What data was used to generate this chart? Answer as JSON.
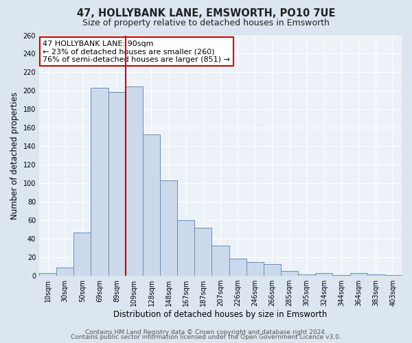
{
  "title": "47, HOLLYBANK LANE, EMSWORTH, PO10 7UE",
  "subtitle": "Size of property relative to detached houses in Emsworth",
  "xlabel": "Distribution of detached houses by size in Emsworth",
  "ylabel": "Number of detached properties",
  "bar_labels": [
    "10sqm",
    "30sqm",
    "50sqm",
    "69sqm",
    "89sqm",
    "109sqm",
    "128sqm",
    "148sqm",
    "167sqm",
    "187sqm",
    "207sqm",
    "226sqm",
    "246sqm",
    "266sqm",
    "285sqm",
    "305sqm",
    "324sqm",
    "344sqm",
    "364sqm",
    "383sqm",
    "403sqm"
  ],
  "bar_values": [
    3,
    9,
    47,
    203,
    199,
    205,
    153,
    103,
    60,
    52,
    33,
    19,
    15,
    13,
    5,
    2,
    3,
    1,
    3,
    2,
    1
  ],
  "bar_color": "#ccd9ea",
  "bar_edge_color": "#6090bf",
  "property_line_color": "#cc0000",
  "annotation_line1": "47 HOLLYBANK LANE: 90sqm",
  "annotation_line2": "← 23% of detached houses are smaller (260)",
  "annotation_line3": "76% of semi-detached houses are larger (851) →",
  "annotation_box_color": "#ffffff",
  "annotation_box_edge_color": "#cc0000",
  "ylim": [
    0,
    260
  ],
  "yticks": [
    0,
    20,
    40,
    60,
    80,
    100,
    120,
    140,
    160,
    180,
    200,
    220,
    240,
    260
  ],
  "footer_line1": "Contains HM Land Registry data © Crown copyright and database right 2024.",
  "footer_line2": "Contains public sector information licensed under the Open Government Licence v3.0.",
  "bg_color": "#dce6f0",
  "plot_bg_color": "#edf2f8",
  "title_fontsize": 10.5,
  "subtitle_fontsize": 9,
  "axis_label_fontsize": 8.5,
  "tick_fontsize": 7,
  "annotation_fontsize": 8,
  "footer_fontsize": 6.5,
  "grid_color": "#ffffff"
}
